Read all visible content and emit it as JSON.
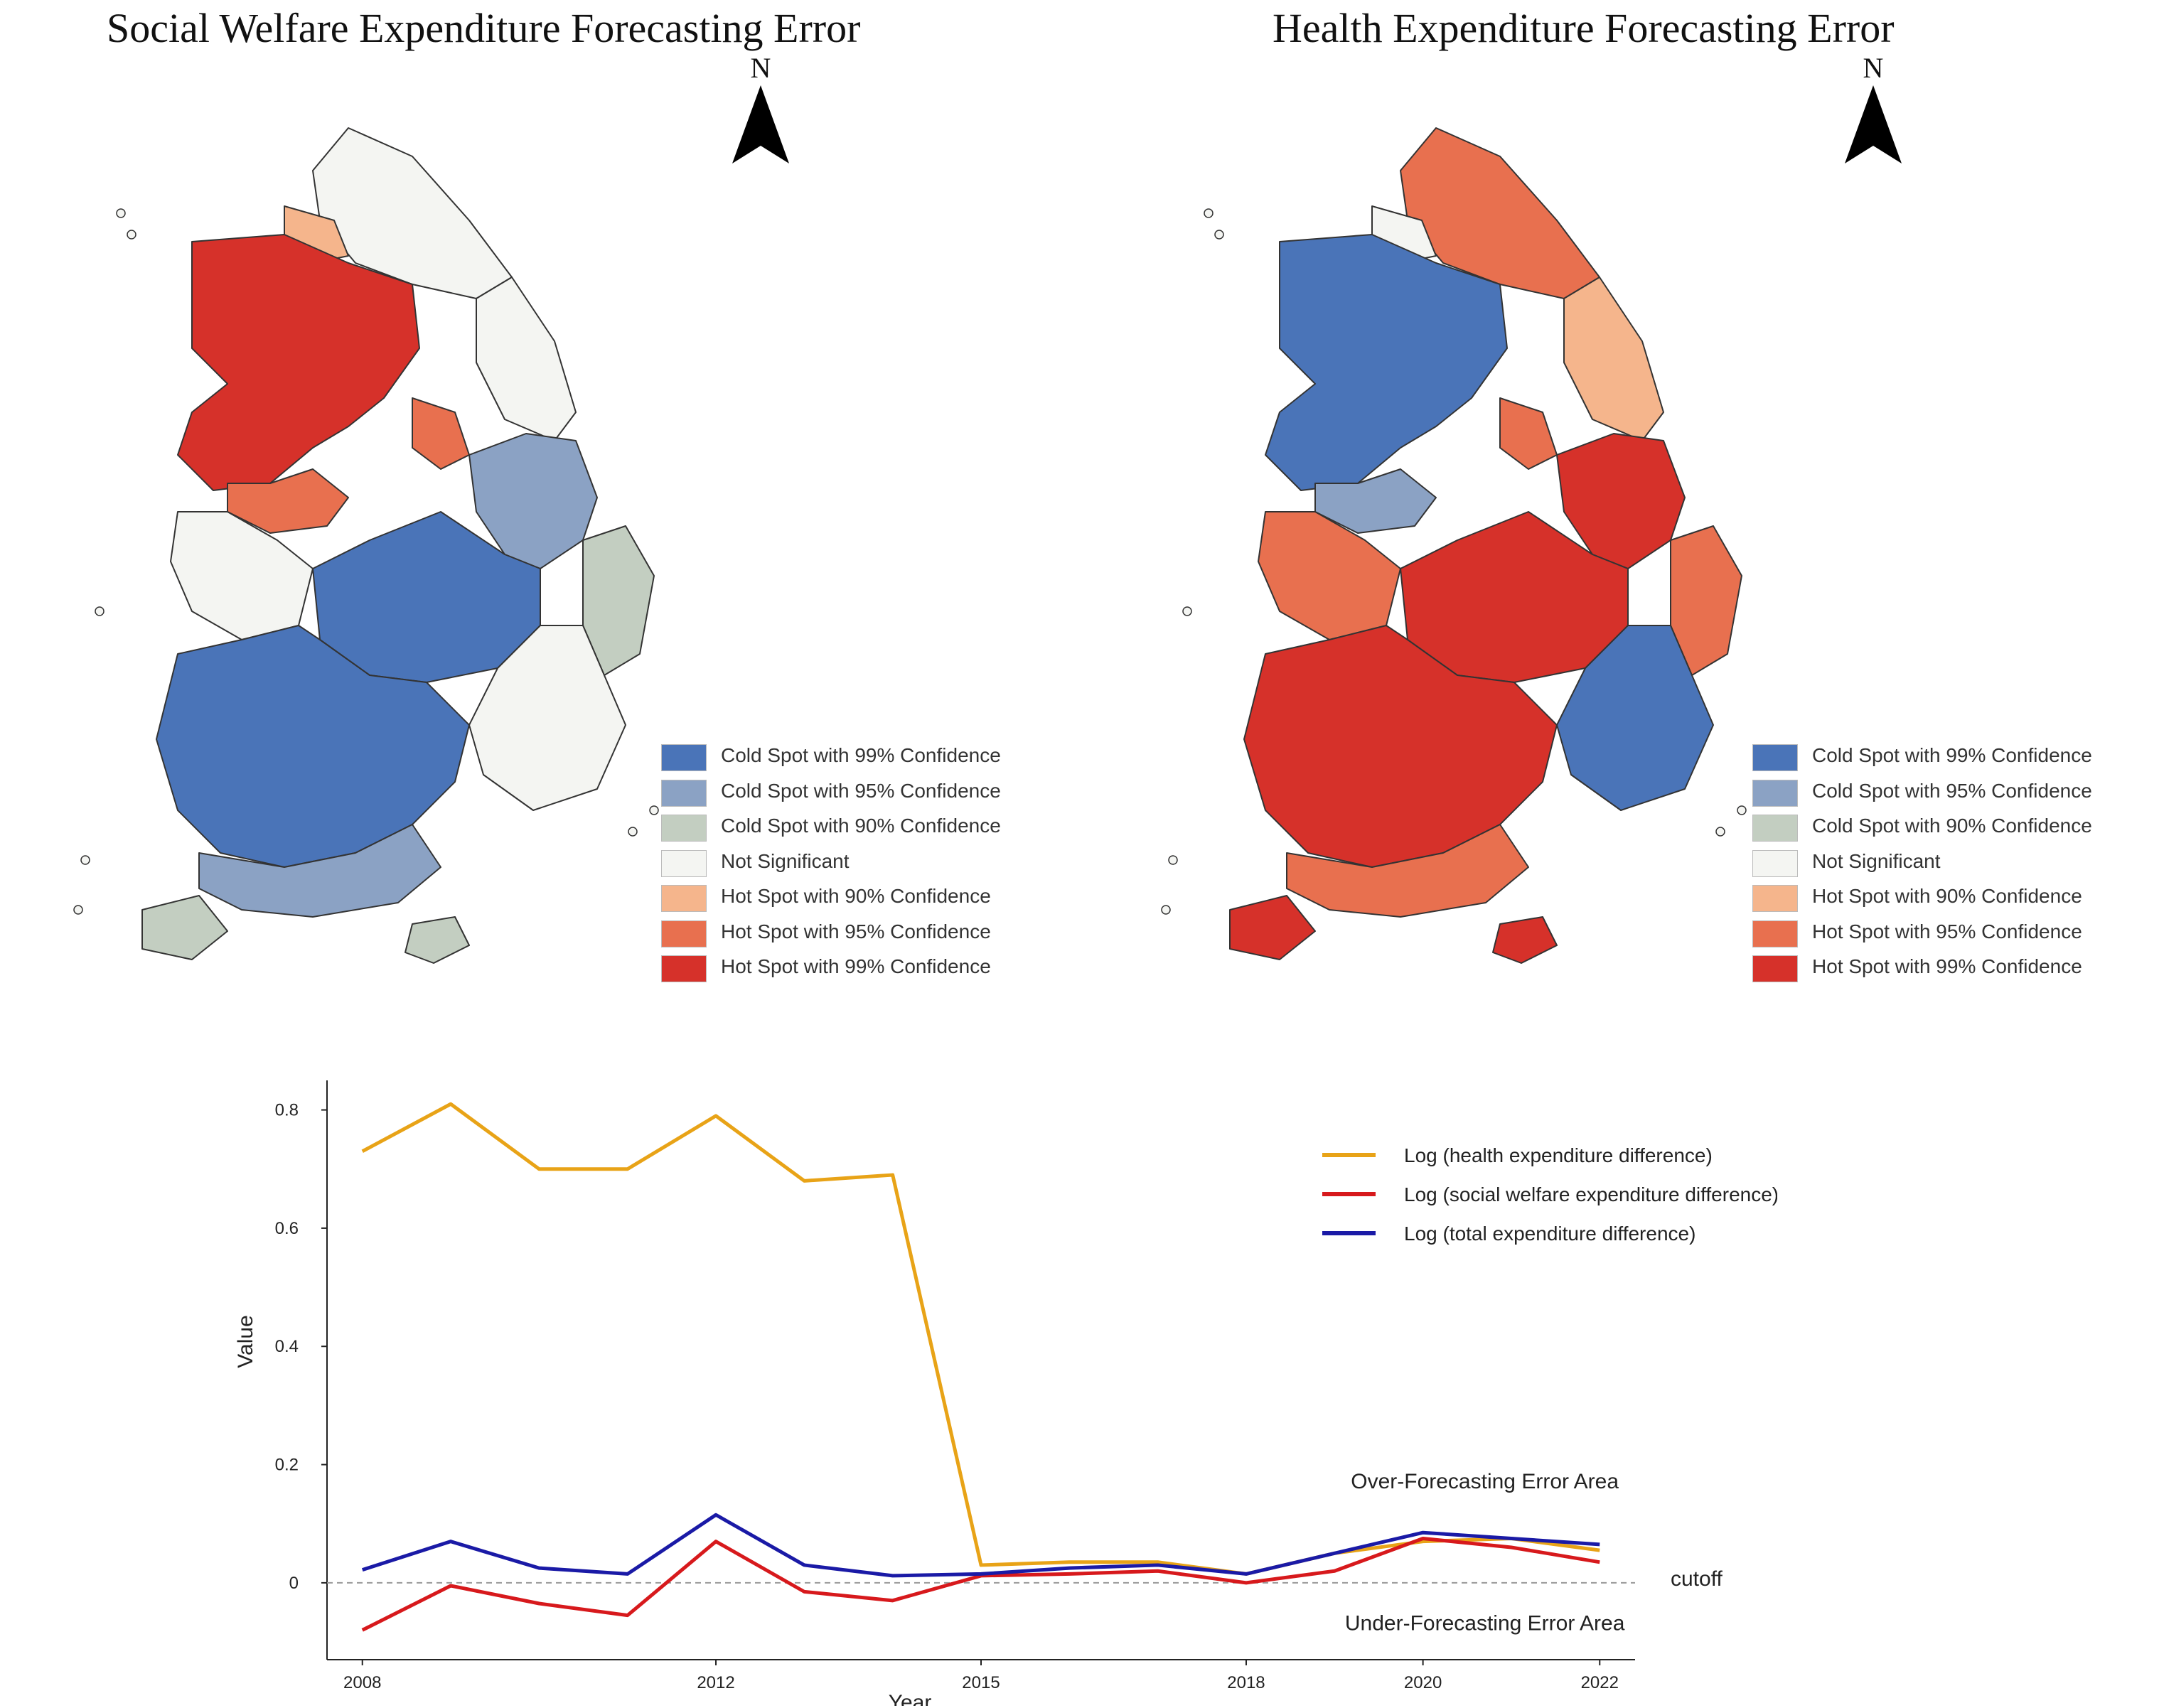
{
  "maps": [
    {
      "title": "Social Welfare Expenditure Forecasting Error",
      "north_label": "N",
      "regions": {
        "north": "not_significant",
        "northeast": "not_significant",
        "northwest_capital": "hot_99",
        "capital_edge_north": "hot_90",
        "capital_edge_east": "hot_95",
        "capital_south": "hot_95",
        "west_central": "not_significant",
        "east_central": "cold_95",
        "central": "cold_99",
        "east_coast": "cold_90",
        "southwest": "cold_99",
        "south_coast": "cold_95",
        "southeast": "not_significant",
        "islands_south": "cold_90"
      }
    },
    {
      "title": "Health Expenditure Forecasting Error",
      "north_label": "N",
      "regions": {
        "north": "hot_95",
        "northeast": "hot_90",
        "northwest_capital": "cold_99",
        "capital_edge_north": "not_significant",
        "capital_edge_east": "hot_95",
        "capital_south": "cold_95",
        "west_central": "hot_95",
        "east_central": "hot_99",
        "central": "hot_99",
        "east_coast": "hot_95",
        "southwest": "hot_99",
        "south_coast": "hot_95",
        "southeast": "cold_99",
        "islands_south": "hot_99"
      }
    }
  ],
  "map_legend": [
    {
      "key": "cold_99",
      "label": "Cold Spot with 99% Confidence",
      "color": "#4a74b8"
    },
    {
      "key": "cold_95",
      "label": "Cold Spot with 95% Confidence",
      "color": "#8ba2c4"
    },
    {
      "key": "cold_90",
      "label": "Cold Spot with 90% Confidence",
      "color": "#c3cec1"
    },
    {
      "key": "not_significant",
      "label": "Not Significant",
      "color": "#f4f5f2"
    },
    {
      "key": "hot_90",
      "label": "Hot Spot with 90% Confidence",
      "color": "#f5b58c"
    },
    {
      "key": "hot_95",
      "label": "Hot Spot with 95% Confidence",
      "color": "#e8704f"
    },
    {
      "key": "hot_99",
      "label": "Hot Spot with 99% Confidence",
      "color": "#d6312a"
    }
  ],
  "chart_data": {
    "type": "line",
    "title": "",
    "xlabel": "Year",
    "ylabel": "Value",
    "x": [
      2008,
      2009,
      2010,
      2011,
      2012,
      2013,
      2014,
      2015,
      2016,
      2017,
      2018,
      2019,
      2020,
      2021,
      2022
    ],
    "xticks": [
      2008,
      2012,
      2015,
      2018,
      2020,
      2022
    ],
    "yticks": [
      0,
      0.2,
      0.4,
      0.6,
      0.8
    ],
    "ytick_labels": [
      "0",
      "0.2",
      "0.4",
      "0.6",
      "0.8"
    ],
    "xlim": [
      2007.6,
      2022.4
    ],
    "ylim": [
      -0.13,
      0.85
    ],
    "grid": false,
    "legend_position": "top-right",
    "series": [
      {
        "name": "Log (health expenditure difference)",
        "color": "#e8a317",
        "values": [
          0.73,
          0.81,
          0.7,
          0.7,
          0.79,
          0.68,
          0.69,
          0.03,
          0.035,
          0.035,
          0.015,
          0.05,
          0.07,
          0.075,
          0.055
        ]
      },
      {
        "name": "Log (social welfare expenditure difference)",
        "color": "#d7191c",
        "values": [
          -0.08,
          -0.005,
          -0.035,
          -0.055,
          0.07,
          -0.015,
          -0.03,
          0.012,
          0.015,
          0.02,
          0.0,
          0.02,
          0.075,
          0.06,
          0.035
        ]
      },
      {
        "name": "Log (total expenditure difference)",
        "color": "#1a1aa6",
        "values": [
          0.022,
          0.07,
          0.025,
          0.015,
          0.115,
          0.03,
          0.012,
          0.015,
          0.025,
          0.03,
          0.015,
          0.05,
          0.085,
          0.075,
          0.065
        ]
      }
    ],
    "cutoff": {
      "value": 0,
      "label": "cutoff"
    },
    "annotations": [
      {
        "text": "Over-Forecasting Error Area",
        "x": 2020.7,
        "y": 0.16
      },
      {
        "text": "Under-Forecasting Error Area",
        "x": 2020.7,
        "y": -0.08
      }
    ]
  }
}
